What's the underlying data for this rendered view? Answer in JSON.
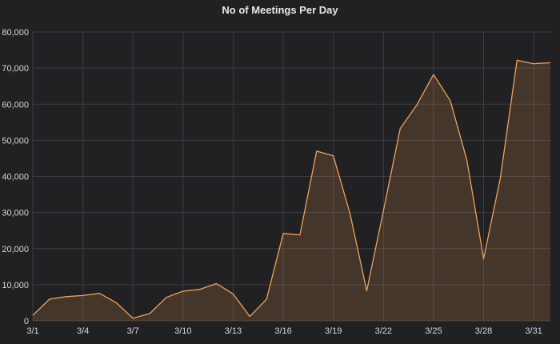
{
  "chart_data": {
    "type": "area",
    "title": "No of Meetings Per Day",
    "xlabel": "",
    "ylabel": "",
    "ylim": [
      0,
      80000
    ],
    "yticks": [
      0,
      10000,
      20000,
      30000,
      40000,
      50000,
      60000,
      70000,
      80000
    ],
    "ytick_labels": [
      "0",
      "10,000",
      "20,000",
      "30,000",
      "40,000",
      "50,000",
      "60,000",
      "70,000",
      "80,000"
    ],
    "x_tick_labels": [
      "3/1",
      "3/4",
      "3/7",
      "3/10",
      "3/13",
      "3/16",
      "3/19",
      "3/22",
      "3/25",
      "3/28",
      "3/31"
    ],
    "grid": true,
    "line_color": "#f2a154",
    "fill_color": "#f2a154",
    "series": [
      {
        "x": [
          "3/1",
          "3/2",
          "3/3",
          "3/4",
          "3/5",
          "3/6",
          "3/7",
          "3/8",
          "3/9",
          "3/10",
          "3/11",
          "3/12",
          "3/13",
          "3/14",
          "3/15",
          "3/16",
          "3/17",
          "3/18",
          "3/19",
          "3/20",
          "3/21",
          "3/22",
          "3/23",
          "3/24",
          "3/25",
          "3/26",
          "3/27",
          "3/28",
          "3/29",
          "3/30",
          "3/31",
          "4/1"
        ],
        "values": [
          1500,
          6000,
          6700,
          7000,
          7600,
          5000,
          700,
          2000,
          6500,
          8200,
          8700,
          10300,
          7400,
          1200,
          6000,
          24200,
          23800,
          47000,
          45700,
          29700,
          8300,
          30500,
          53200,
          59800,
          68200,
          61000,
          44500,
          17200,
          39500,
          72200,
          71200,
          71500
        ]
      }
    ]
  }
}
